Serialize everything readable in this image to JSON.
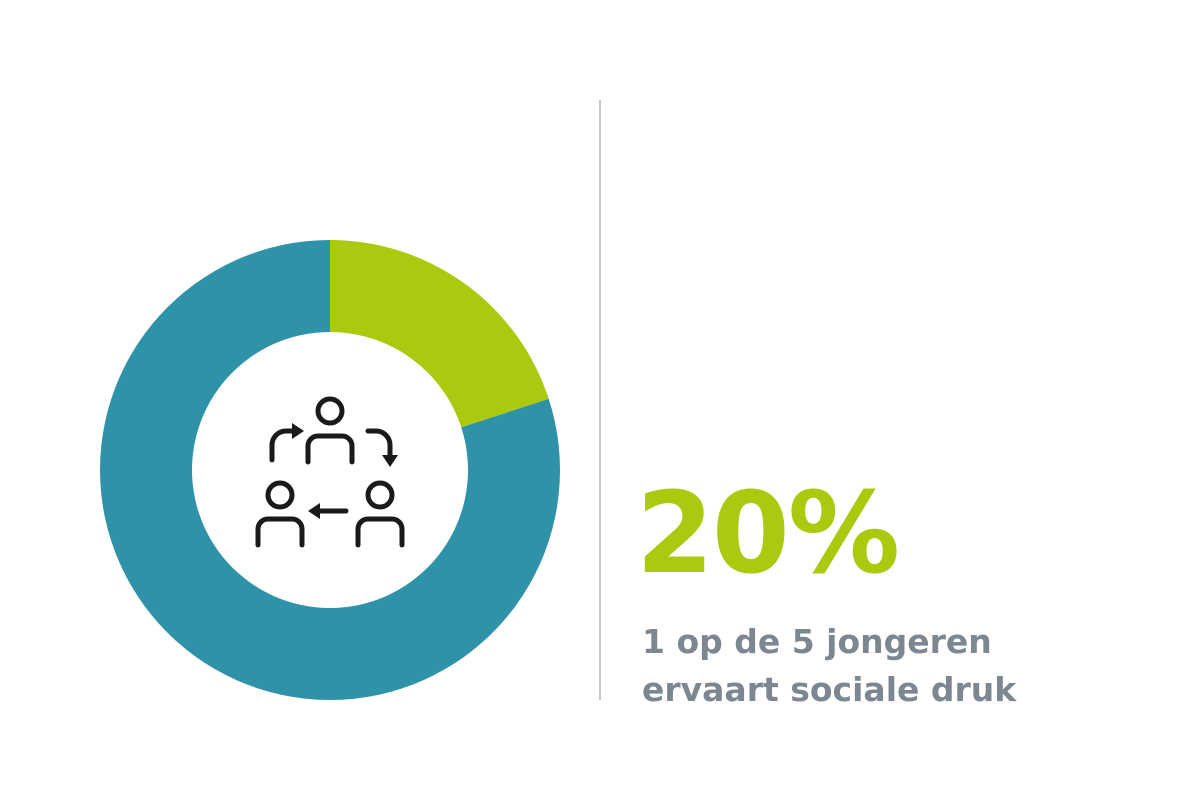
{
  "chart_data": {
    "type": "donut",
    "values": [
      20,
      80
    ],
    "value_labels": [
      "20%",
      null
    ],
    "colors": [
      "#aac90f",
      "#2e92a8"
    ],
    "annotation": "1 op de 5 jongeren ervaart sociale druk"
  }
}
